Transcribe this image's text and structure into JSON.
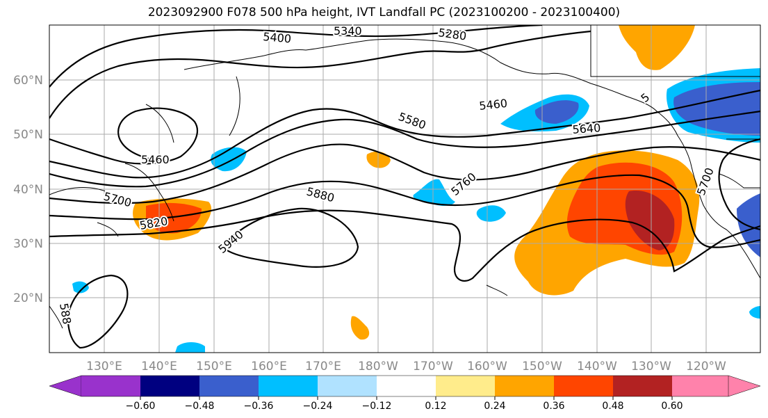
{
  "title": "2023092900 F078 500 hPa height, IVT Landfall PC (2023100200 - 2023100400)",
  "lat_labels": [
    "60°N",
    "50°N",
    "40°N",
    "30°N",
    "20°N"
  ],
  "lon_labels": [
    "130°E",
    "140°E",
    "150°E",
    "160°E",
    "170°E",
    "180°W",
    "170°W",
    "160°W",
    "150°W",
    "140°W",
    "130°W",
    "120°W"
  ],
  "contour_labels": [
    "5400",
    "5340",
    "5280",
    "5460",
    "5580",
    "5640",
    "5460",
    "5700",
    "5820",
    "5880",
    "5760",
    "5940",
    "5700",
    "588",
    "5"
  ],
  "colorbar": {
    "ticks": [
      "−0.60",
      "−0.48",
      "−0.36",
      "−0.24",
      "−0.12",
      "0.12",
      "0.24",
      "0.36",
      "0.48",
      "0.60"
    ],
    "colors": [
      "#9932cc",
      "#000080",
      "#3a5fcd",
      "#00bfff",
      "#b0e2ff",
      "#ffffff",
      "#ffec8b",
      "#ffa500",
      "#ff4500",
      "#b22222",
      "#ff82ab"
    ]
  },
  "colors": {
    "orange": "#ffa500",
    "red_orange": "#ff4500",
    "dark_red": "#b22222",
    "yellow": "#ffec8b",
    "sky_blue": "#00bfff",
    "royal_blue": "#3a5fcd",
    "gridline": "#aaaaaa",
    "tick_text": "#888888"
  }
}
